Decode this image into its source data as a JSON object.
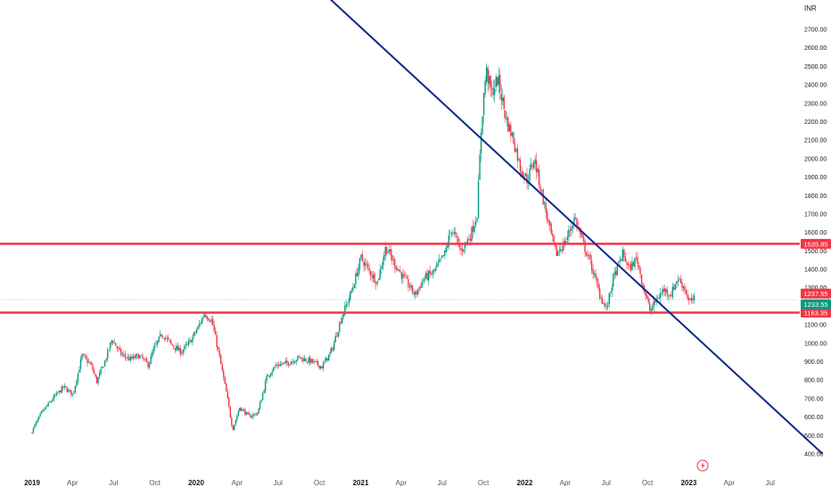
{
  "chart_data": {
    "type": "candlestick",
    "currency": "INR",
    "y_axis": {
      "ylim": [
        380,
        2790
      ],
      "tick_labels": [
        "400.00",
        "500.00",
        "600.00",
        "700.00",
        "800.00",
        "900.00",
        "1000.00",
        "1100.00",
        "1200.00",
        "1300.00",
        "1400.00",
        "1500.00",
        "1600.00",
        "1700.00",
        "1800.00",
        "1900.00",
        "2000.00",
        "2100.00",
        "2200.00",
        "2300.00",
        "2400.00",
        "2500.00",
        "2600.00",
        "2700.00"
      ],
      "tick_values": [
        400,
        500,
        600,
        700,
        800,
        900,
        1000,
        1100,
        1200,
        1300,
        1400,
        1500,
        1600,
        1700,
        1800,
        1900,
        2000,
        2100,
        2200,
        2300,
        2400,
        2500,
        2600,
        2700
      ]
    },
    "x_axis": {
      "tick_labels": [
        "2019",
        "Apr",
        "Jul",
        "Oct",
        "2020",
        "Apr",
        "Jul",
        "Oct",
        "2021",
        "Apr",
        "Jul",
        "Oct",
        "2022",
        "Apr",
        "Jul",
        "Oct",
        "2023",
        "Apr",
        "Jul"
      ],
      "tick_dates": [
        "2019-01-01",
        "2019-04-01",
        "2019-07-01",
        "2019-10-01",
        "2020-01-01",
        "2020-04-01",
        "2020-07-01",
        "2020-10-01",
        "2021-01-01",
        "2021-04-01",
        "2021-07-01",
        "2021-10-01",
        "2022-01-01",
        "2022-04-01",
        "2022-07-01",
        "2022-10-01",
        "2023-01-01",
        "2023-04-01",
        "2023-07-01"
      ],
      "bold": [
        "2019",
        "2020",
        "2021",
        "2022",
        "2023"
      ]
    },
    "series": [
      {
        "name": "",
        "kind": "price-path",
        "points": [
          [
            "2019-01-01",
            510
          ],
          [
            "2019-01-25",
            620
          ],
          [
            "2019-02-20",
            700
          ],
          [
            "2019-03-15",
            760
          ],
          [
            "2019-04-05",
            720
          ],
          [
            "2019-04-25",
            930
          ],
          [
            "2019-05-15",
            880
          ],
          [
            "2019-05-28",
            790
          ],
          [
            "2019-06-15",
            900
          ],
          [
            "2019-07-01",
            1020
          ],
          [
            "2019-07-20",
            940
          ],
          [
            "2019-08-10",
            910
          ],
          [
            "2019-08-30",
            930
          ],
          [
            "2019-09-20",
            880
          ],
          [
            "2019-10-01",
            960
          ],
          [
            "2019-10-20",
            1050
          ],
          [
            "2019-11-10",
            990
          ],
          [
            "2019-12-01",
            950
          ],
          [
            "2019-12-20",
            1000
          ],
          [
            "2020-01-10",
            1090
          ],
          [
            "2020-01-22",
            1160
          ],
          [
            "2020-02-08",
            1120
          ],
          [
            "2020-02-25",
            920
          ],
          [
            "2020-03-12",
            720
          ],
          [
            "2020-03-25",
            530
          ],
          [
            "2020-04-10",
            650
          ],
          [
            "2020-05-01",
            600
          ],
          [
            "2020-05-20",
            620
          ],
          [
            "2020-06-10",
            820
          ],
          [
            "2020-07-01",
            880
          ],
          [
            "2020-07-25",
            890
          ],
          [
            "2020-08-20",
            920
          ],
          [
            "2020-09-15",
            900
          ],
          [
            "2020-10-10",
            870
          ],
          [
            "2020-11-01",
            960
          ],
          [
            "2020-11-20",
            1120
          ],
          [
            "2020-12-15",
            1280
          ],
          [
            "2021-01-05",
            1460
          ],
          [
            "2021-01-25",
            1380
          ],
          [
            "2021-02-10",
            1330
          ],
          [
            "2021-03-01",
            1520
          ],
          [
            "2021-03-20",
            1430
          ],
          [
            "2021-04-10",
            1350
          ],
          [
            "2021-05-05",
            1260
          ],
          [
            "2021-05-25",
            1350
          ],
          [
            "2021-06-15",
            1380
          ],
          [
            "2021-07-10",
            1480
          ],
          [
            "2021-07-25",
            1620
          ],
          [
            "2021-08-15",
            1500
          ],
          [
            "2021-09-05",
            1580
          ],
          [
            "2021-09-20",
            1700
          ],
          [
            "2021-09-30",
            2200
          ],
          [
            "2021-10-10",
            2480
          ],
          [
            "2021-10-22",
            2350
          ],
          [
            "2021-11-05",
            2430
          ],
          [
            "2021-11-25",
            2200
          ],
          [
            "2021-12-10",
            2100
          ],
          [
            "2021-12-25",
            1950
          ],
          [
            "2022-01-10",
            1880
          ],
          [
            "2022-01-25",
            2000
          ],
          [
            "2022-02-10",
            1820
          ],
          [
            "2022-02-28",
            1620
          ],
          [
            "2022-03-15",
            1480
          ],
          [
            "2022-04-05",
            1550
          ],
          [
            "2022-04-25",
            1680
          ],
          [
            "2022-05-15",
            1530
          ],
          [
            "2022-06-01",
            1420
          ],
          [
            "2022-06-20",
            1260
          ],
          [
            "2022-07-05",
            1180
          ],
          [
            "2022-07-20",
            1350
          ],
          [
            "2022-08-10",
            1480
          ],
          [
            "2022-08-25",
            1400
          ],
          [
            "2022-09-10",
            1460
          ],
          [
            "2022-09-25",
            1300
          ],
          [
            "2022-10-10",
            1170
          ],
          [
            "2022-10-25",
            1240
          ],
          [
            "2022-11-10",
            1290
          ],
          [
            "2022-11-25",
            1260
          ],
          [
            "2022-12-10",
            1350
          ],
          [
            "2022-12-25",
            1300
          ],
          [
            "2023-01-05",
            1220
          ],
          [
            "2023-01-15",
            1235
          ]
        ]
      }
    ],
    "trend_line": {
      "color": "#0d2a8c",
      "from": [
        "2020-10-26",
        2860
      ],
      "to": [
        "2023-10-25",
        400
      ]
    },
    "horizontal_levels": [
      {
        "value": 1535.85,
        "label": "1535.85",
        "color": "#f23645"
      },
      {
        "value": 1163.35,
        "label": "1163.35",
        "color": "#f23645"
      }
    ],
    "price_labels": [
      {
        "value": 1237.55,
        "label": "1237.55",
        "color": "#f23645"
      },
      {
        "value": 1233.55,
        "label": "1233.55",
        "color": "#089981"
      }
    ],
    "last_price_line": 1233.55,
    "colors": {
      "up": "#089981",
      "down": "#f23645",
      "axis_text": "#131722",
      "tick_muted": "#555555"
    },
    "grid": false,
    "legend": "none"
  },
  "icons": {
    "event_marker": "lightning-icon"
  }
}
